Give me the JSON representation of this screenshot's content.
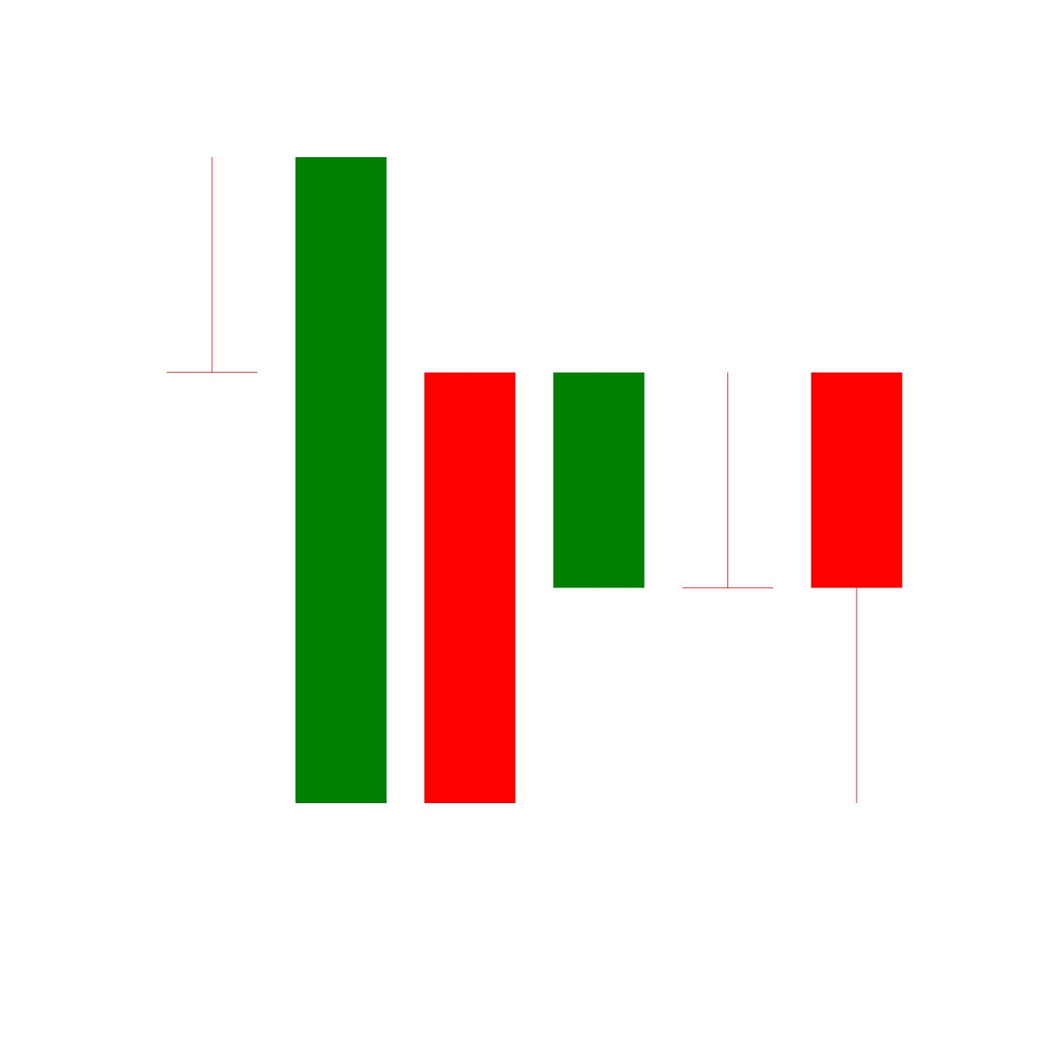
{
  "chart_data": {
    "type": "candlestick",
    "title": "",
    "xlabel": "",
    "ylabel": "",
    "ylim": [
      0,
      3
    ],
    "grid": false,
    "legend": "none",
    "colors": {
      "up": "#008000",
      "down": "#ff0000",
      "wick": "#ff0000",
      "background": "#ffffff"
    },
    "candles": [
      {
        "index": 1,
        "open": 2,
        "high": 3,
        "low": 2,
        "close": 2
      },
      {
        "index": 2,
        "open": 0,
        "high": 3,
        "low": 0,
        "close": 3
      },
      {
        "index": 3,
        "open": 2,
        "high": 2,
        "low": 0,
        "close": 0
      },
      {
        "index": 4,
        "open": 1,
        "high": 2,
        "low": 1,
        "close": 2
      },
      {
        "index": 5,
        "open": 1,
        "high": 2,
        "low": 1,
        "close": 1
      },
      {
        "index": 6,
        "open": 2,
        "high": 2,
        "low": 0,
        "close": 1
      }
    ]
  }
}
